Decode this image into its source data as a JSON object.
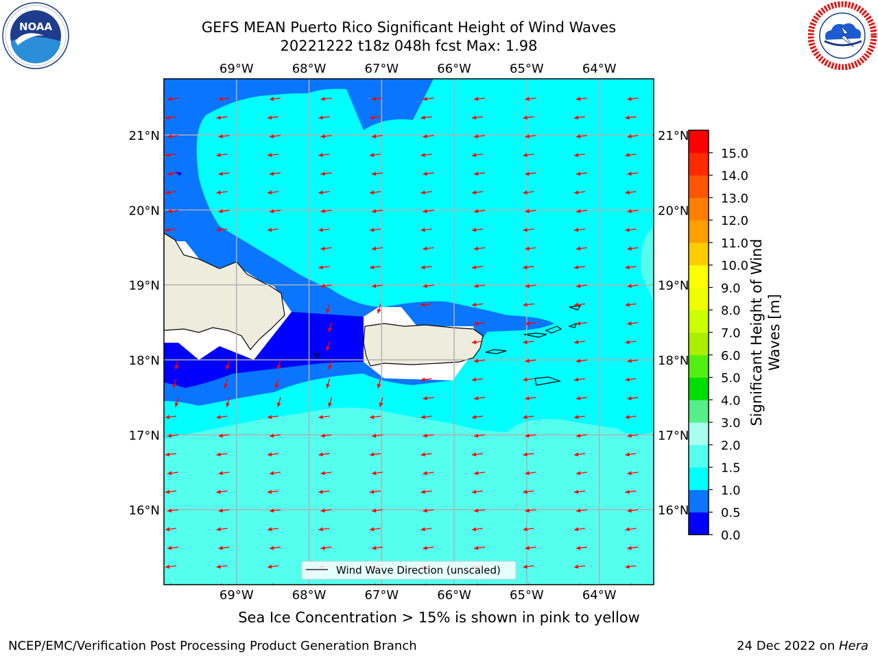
{
  "title": {
    "line1": "GEFS MEAN Puerto Rico Significant Height of Wind Waves",
    "line2": "20221222 t18z 048h fcst   Max: 1.98"
  },
  "logos": {
    "left": {
      "name": "noaa-logo",
      "text": "NOAA",
      "ring_text": "NATIONAL OCEANIC AND ATMOSPHERIC ADMINISTRATION · U.S. DEPARTMENT OF COMMERCE"
    },
    "right": {
      "name": "national-weather-service-logo",
      "ring_text": "NATIONAL WEATHER SERVICE"
    }
  },
  "map": {
    "lon_labels": [
      "69°W",
      "68°W",
      "67°W",
      "66°W",
      "65°W",
      "64°W"
    ],
    "lat_labels": [
      "21°N",
      "20°N",
      "19°N",
      "18°N",
      "17°N",
      "16°N"
    ],
    "lon_values": [
      -69,
      -68,
      -67,
      -66,
      -65,
      -64
    ],
    "lat_values": [
      21,
      20,
      19,
      18,
      17,
      16
    ],
    "lon_range": [
      -70.0,
      -63.25
    ],
    "lat_range": [
      15.0,
      21.75
    ],
    "legend_label": "Wind Wave Direction (unscaled)",
    "arrow_color": "#ff0000",
    "land_color": "#eeecdc"
  },
  "colorbar": {
    "label_line1": "Significant Height of Wind",
    "label_line2": "Waves [m]",
    "ticks": [
      "0.0",
      "0.5",
      "1.0",
      "1.5",
      "2.0",
      "3.0",
      "4.0",
      "5.0",
      "6.0",
      "7.0",
      "8.0",
      "9.0",
      "10.0",
      "11.0",
      "12.0",
      "13.0",
      "14.0",
      "15.0"
    ],
    "colors": [
      "#0000ff",
      "#0a75ff",
      "#00ffff",
      "#55ffee",
      "#aaffee",
      "#55ee88",
      "#00dd00",
      "#55ee11",
      "#aaee00",
      "#ccff00",
      "#eeff00",
      "#ffff00",
      "#ffcc00",
      "#ffa000",
      "#ff8000",
      "#ff5500",
      "#ff2a00",
      "#ff0000"
    ]
  },
  "caption": "Sea Ice Concentration > 15% is shown in pink to yellow",
  "footer": {
    "left": "NCEP/EMC/Verification Post Processing Product Generation Branch",
    "right_date": "24 Dec 2022 on ",
    "right_host": "Hera"
  }
}
